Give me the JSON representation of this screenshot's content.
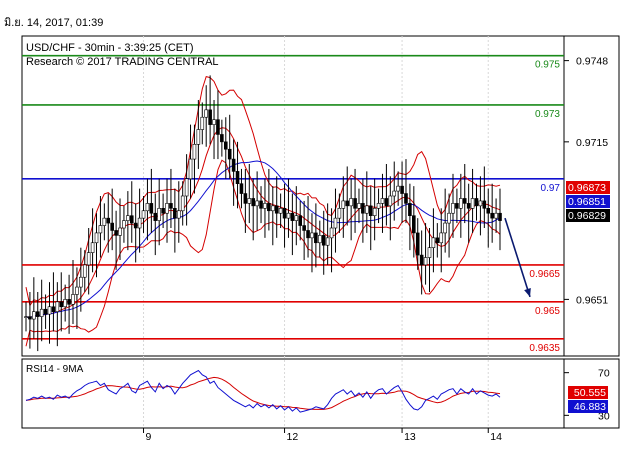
{
  "header": {
    "timestamp": "มิ.ย. 14, 2017, 01:39"
  },
  "chart_data": {
    "type": "candlestick",
    "title": "USD/CHF - 30min - 3:39:25 (CET)",
    "subtitle": "Research © 2017 TRADING CENTRAL",
    "x_tick_labels": [
      "9",
      "12",
      "13",
      "14"
    ],
    "price_axis": {
      "ylim": [
        0.9628,
        0.9758
      ],
      "tick_labels": [
        "0.9748",
        "0.9715",
        "0.9651"
      ]
    },
    "levels": [
      {
        "value": 0.975,
        "label": "0.975",
        "color": "#1a8a1a"
      },
      {
        "value": 0.973,
        "label": "0.973",
        "color": "#1a8a1a"
      },
      {
        "value": 0.97,
        "label": "0.97",
        "color": "#1010d0"
      },
      {
        "value": 0.9665,
        "label": "0.9665",
        "color": "#e00000"
      },
      {
        "value": 0.965,
        "label": "0.965",
        "color": "#e00000"
      },
      {
        "value": 0.9635,
        "label": "0.9635",
        "color": "#e00000"
      }
    ],
    "price_badges": [
      {
        "label": "0.96873",
        "value": 0.96873,
        "bg": "#e00000",
        "fg": "#ffffff"
      },
      {
        "label": "0.96851",
        "value": 0.96851,
        "bg": "#1010d0",
        "fg": "#ffffff"
      },
      {
        "label": "0.96829",
        "value": 0.96829,
        "bg": "#000000",
        "fg": "#ffffff"
      }
    ],
    "forecast_arrow": {
      "from": 0.9684,
      "to": 0.9652
    },
    "series_close": [
      0.9644,
      0.9643,
      0.9646,
      0.9644,
      0.9647,
      0.9645,
      0.9648,
      0.9646,
      0.965,
      0.9648,
      0.9651,
      0.9649,
      0.9653,
      0.9656,
      0.966,
      0.9665,
      0.967,
      0.9674,
      0.9678,
      0.9681,
      0.9684,
      0.9682,
      0.9679,
      0.9677,
      0.968,
      0.9683,
      0.9685,
      0.9682,
      0.968,
      0.9684,
      0.9687,
      0.969,
      0.9686,
      0.9683,
      0.9688,
      0.9686,
      0.969,
      0.9688,
      0.9684,
      0.9687,
      0.9693,
      0.97,
      0.9708,
      0.9714,
      0.972,
      0.9725,
      0.9728,
      0.9722,
      0.9724,
      0.9718,
      0.9715,
      0.9712,
      0.9708,
      0.9703,
      0.9698,
      0.9694,
      0.969,
      0.9692,
      0.9689,
      0.9691,
      0.9688,
      0.969,
      0.9687,
      0.9689,
      0.9686,
      0.9688,
      0.9684,
      0.9686,
      0.9683,
      0.9685,
      0.9681,
      0.9679,
      0.9676,
      0.9678,
      0.9674,
      0.9677,
      0.9673,
      0.9676,
      0.968,
      0.9684,
      0.9688,
      0.9691,
      0.9689,
      0.9692,
      0.9688,
      0.969,
      0.9686,
      0.9689,
      0.9685,
      0.9688,
      0.969,
      0.9692,
      0.9689,
      0.9693,
      0.9695,
      0.9697,
      0.9694,
      0.969,
      0.9685,
      0.9678,
      0.9669,
      0.9665,
      0.9668,
      0.9672,
      0.9676,
      0.9674,
      0.9678,
      0.9682,
      0.9686,
      0.969,
      0.9688,
      0.9692,
      0.969,
      0.9688,
      0.9692,
      0.9689,
      0.9691,
      0.9688,
      0.9686,
      0.9684,
      0.9686,
      0.9683
    ],
    "rsi": {
      "label": "RSI14 - 9MA",
      "ylim": [
        20,
        80
      ],
      "tick_labels": [
        "70",
        "30"
      ],
      "badges": [
        {
          "label": "50.555",
          "value": 50.555,
          "bg": "#e00000",
          "fg": "#ffffff"
        },
        {
          "label": "46.883",
          "value": 46.883,
          "bg": "#1010d0",
          "fg": "#ffffff"
        }
      ],
      "values": [
        44,
        45,
        47,
        46,
        48,
        46,
        47,
        45,
        49,
        47,
        48,
        46,
        50,
        53,
        55,
        58,
        60,
        61,
        62,
        58,
        60,
        54,
        52,
        50,
        55,
        57,
        60,
        53,
        51,
        58,
        60,
        62,
        56,
        52,
        60,
        55,
        58,
        56,
        50,
        55,
        60,
        64,
        68,
        70,
        72,
        68,
        66,
        60,
        62,
        56,
        53,
        50,
        47,
        44,
        42,
        40,
        38,
        40,
        37,
        41,
        38,
        40,
        37,
        40,
        36,
        39,
        35,
        38,
        34,
        37,
        33,
        34,
        35,
        36,
        38,
        37,
        36,
        40,
        46,
        50,
        52,
        54,
        50,
        53,
        48,
        51,
        47,
        52,
        46,
        51,
        54,
        55,
        50,
        53,
        56,
        58,
        52,
        45,
        40,
        36,
        35,
        38,
        44,
        46,
        48,
        45,
        50,
        52,
        54,
        55,
        50,
        55,
        52,
        50,
        55,
        50,
        53,
        51,
        49,
        48,
        50,
        47
      ]
    }
  }
}
